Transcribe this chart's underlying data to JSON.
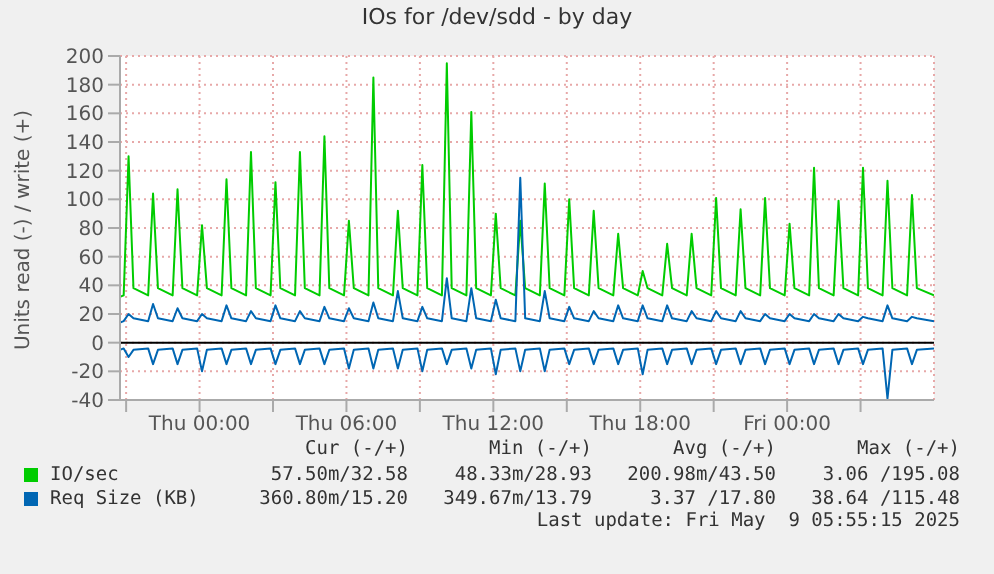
{
  "chart_data": {
    "type": "line",
    "title": "IOs for /dev/sdd - by day",
    "ylabel": "Units read (-) / write (+)",
    "x": [
      "2025-05-07T20:45",
      "2025-05-07T20:54",
      "2025-05-07T21:06",
      "2025-05-07T21:18",
      "2025-05-07T21:54",
      "2025-05-07T22:06",
      "2025-05-07T22:18",
      "2025-05-07T22:54",
      "2025-05-07T23:06",
      "2025-05-07T23:18",
      "2025-05-07T23:54",
      "2025-05-08T00:06",
      "2025-05-08T00:18",
      "2025-05-08T00:54",
      "2025-05-08T01:06",
      "2025-05-08T01:18",
      "2025-05-08T01:54",
      "2025-05-08T02:06",
      "2025-05-08T02:18",
      "2025-05-08T02:54",
      "2025-05-08T03:06",
      "2025-05-08T03:18",
      "2025-05-08T03:54",
      "2025-05-08T04:06",
      "2025-05-08T04:18",
      "2025-05-08T04:54",
      "2025-05-08T05:06",
      "2025-05-08T05:18",
      "2025-05-08T05:54",
      "2025-05-08T06:06",
      "2025-05-08T06:18",
      "2025-05-08T06:54",
      "2025-05-08T07:06",
      "2025-05-08T07:18",
      "2025-05-08T07:54",
      "2025-05-08T08:06",
      "2025-05-08T08:18",
      "2025-05-08T08:54",
      "2025-05-08T09:06",
      "2025-05-08T09:18",
      "2025-05-08T09:54",
      "2025-05-08T10:06",
      "2025-05-08T10:18",
      "2025-05-08T10:54",
      "2025-05-08T11:06",
      "2025-05-08T11:18",
      "2025-05-08T11:54",
      "2025-05-08T12:06",
      "2025-05-08T12:18",
      "2025-05-08T12:54",
      "2025-05-08T13:06",
      "2025-05-08T13:18",
      "2025-05-08T13:54",
      "2025-05-08T14:06",
      "2025-05-08T14:18",
      "2025-05-08T14:54",
      "2025-05-08T15:06",
      "2025-05-08T15:18",
      "2025-05-08T15:54",
      "2025-05-08T16:06",
      "2025-05-08T16:18",
      "2025-05-08T16:54",
      "2025-05-08T17:06",
      "2025-05-08T17:18",
      "2025-05-08T17:54",
      "2025-05-08T18:06",
      "2025-05-08T18:18",
      "2025-05-08T18:54",
      "2025-05-08T19:06",
      "2025-05-08T19:18",
      "2025-05-08T19:54",
      "2025-05-08T20:06",
      "2025-05-08T20:18",
      "2025-05-08T20:54",
      "2025-05-08T21:06",
      "2025-05-08T21:18",
      "2025-05-08T21:54",
      "2025-05-08T22:06",
      "2025-05-08T22:18",
      "2025-05-08T22:54",
      "2025-05-08T23:06",
      "2025-05-08T23:18",
      "2025-05-08T23:54",
      "2025-05-09T00:06",
      "2025-05-09T00:18",
      "2025-05-09T00:54",
      "2025-05-09T01:06",
      "2025-05-09T01:18",
      "2025-05-09T01:54",
      "2025-05-09T02:06",
      "2025-05-09T02:18",
      "2025-05-09T02:54",
      "2025-05-09T03:06",
      "2025-05-09T03:18",
      "2025-05-09T03:54",
      "2025-05-09T04:06",
      "2025-05-09T04:18",
      "2025-05-09T04:54",
      "2025-05-09T05:06",
      "2025-05-09T05:18",
      "2025-05-09T06:00"
    ],
    "series": [
      {
        "name": "IO/sec",
        "color": "#00cc00",
        "values": [
          32,
          33,
          130,
          38,
          33,
          104,
          38,
          33,
          107,
          38,
          33,
          82,
          38,
          33,
          114,
          38,
          33,
          133,
          38,
          33,
          112,
          38,
          33,
          133,
          38,
          33,
          144,
          38,
          33,
          85,
          38,
          33,
          185,
          38,
          33,
          92,
          38,
          33,
          124,
          38,
          33,
          195,
          38,
          33,
          161,
          38,
          33,
          90,
          38,
          33,
          85,
          38,
          33,
          111,
          38,
          33,
          100,
          38,
          33,
          92,
          38,
          33,
          76,
          38,
          33,
          50,
          38,
          33,
          69,
          38,
          33,
          76,
          38,
          33,
          101,
          38,
          33,
          93,
          38,
          33,
          101,
          38,
          33,
          83,
          38,
          33,
          122,
          38,
          33,
          99,
          38,
          33,
          122,
          38,
          33,
          113,
          38,
          33,
          103,
          38,
          33
        ]
      },
      {
        "name": "Req Size (KB)",
        "color": "#0066b3",
        "values": [
          14,
          15,
          20,
          17,
          15,
          27,
          17,
          15,
          24,
          17,
          15,
          20,
          17,
          15,
          26,
          17,
          15,
          22,
          17,
          15,
          26,
          17,
          15,
          22,
          17,
          15,
          25,
          17,
          15,
          24,
          17,
          15,
          28,
          17,
          15,
          36,
          17,
          15,
          25,
          17,
          15,
          45,
          17,
          15,
          38,
          17,
          15,
          30,
          17,
          15,
          115,
          17,
          15,
          36,
          17,
          15,
          25,
          17,
          15,
          22,
          17,
          15,
          26,
          17,
          15,
          26,
          17,
          15,
          26,
          17,
          15,
          22,
          17,
          15,
          22,
          17,
          15,
          22,
          17,
          15,
          20,
          17,
          15,
          20,
          17,
          15,
          20,
          17,
          15,
          20,
          17,
          15,
          18,
          17,
          15,
          26,
          17,
          15,
          18,
          17,
          15
        ]
      },
      {
        "color": "#0066b3",
        "values": [
          -5,
          -4,
          -10,
          -5,
          -4,
          -15,
          -5,
          -4,
          -15,
          -5,
          -4,
          -20,
          -5,
          -4,
          -15,
          -5,
          -4,
          -15,
          -5,
          -4,
          -15,
          -5,
          -4,
          -15,
          -5,
          -4,
          -15,
          -5,
          -4,
          -18,
          -5,
          -4,
          -18,
          -5,
          -4,
          -18,
          -5,
          -4,
          -20,
          -5,
          -4,
          -15,
          -5,
          -4,
          -18,
          -5,
          -4,
          -22,
          -5,
          -4,
          -20,
          -5,
          -4,
          -20,
          -5,
          -4,
          -15,
          -5,
          -4,
          -15,
          -5,
          -4,
          -15,
          -5,
          -4,
          -22,
          -5,
          -4,
          -15,
          -5,
          -4,
          -15,
          -5,
          -4,
          -15,
          -5,
          -4,
          -15,
          -5,
          -4,
          -15,
          -5,
          -4,
          -15,
          -5,
          -4,
          -15,
          -5,
          -4,
          -15,
          -5,
          -4,
          -15,
          -5,
          -4,
          -39,
          -5,
          -4,
          -15,
          -5,
          -4
        ]
      }
    ],
    "xlim": [
      "2025-05-07T20:45",
      "2025-05-09T06:00"
    ],
    "xticks": [
      {
        "value": "2025-05-07T21:00",
        "label": null
      },
      {
        "value": "2025-05-08T00:00",
        "label": "Thu 00:00"
      },
      {
        "value": "2025-05-08T03:00",
        "label": null
      },
      {
        "value": "2025-05-08T06:00",
        "label": "Thu 06:00"
      },
      {
        "value": "2025-05-08T09:00",
        "label": null
      },
      {
        "value": "2025-05-08T12:00",
        "label": "Thu 12:00"
      },
      {
        "value": "2025-05-08T15:00",
        "label": null
      },
      {
        "value": "2025-05-08T18:00",
        "label": "Thu 18:00"
      },
      {
        "value": "2025-05-08T21:00",
        "label": null
      },
      {
        "value": "2025-05-09T00:00",
        "label": "Fri 00:00"
      },
      {
        "value": "2025-05-09T03:00",
        "label": null
      }
    ],
    "ylim": [
      -40,
      200
    ],
    "yticks": [
      -40,
      -20,
      0,
      20,
      40,
      60,
      80,
      100,
      120,
      140,
      160,
      180,
      200
    ],
    "grid": true,
    "legend": "bottom",
    "ref_lines": [
      {
        "axis": "y",
        "value": 0,
        "label": null,
        "color": "#000000"
      }
    ],
    "annotations": [
      "Cur (-/+)",
      "Min (-/+)",
      "Avg (-/+)",
      "Max (-/+)",
      "57.50m/32.58",
      "48.33m/28.93",
      "200.98m/43.50",
      "3.06 /195.08",
      "360.80m/15.20",
      "349.67m/13.79",
      "3.37 /17.80",
      "38.64 /115.48",
      "Last update: Fri May  9 05:55:15 2025"
    ]
  }
}
